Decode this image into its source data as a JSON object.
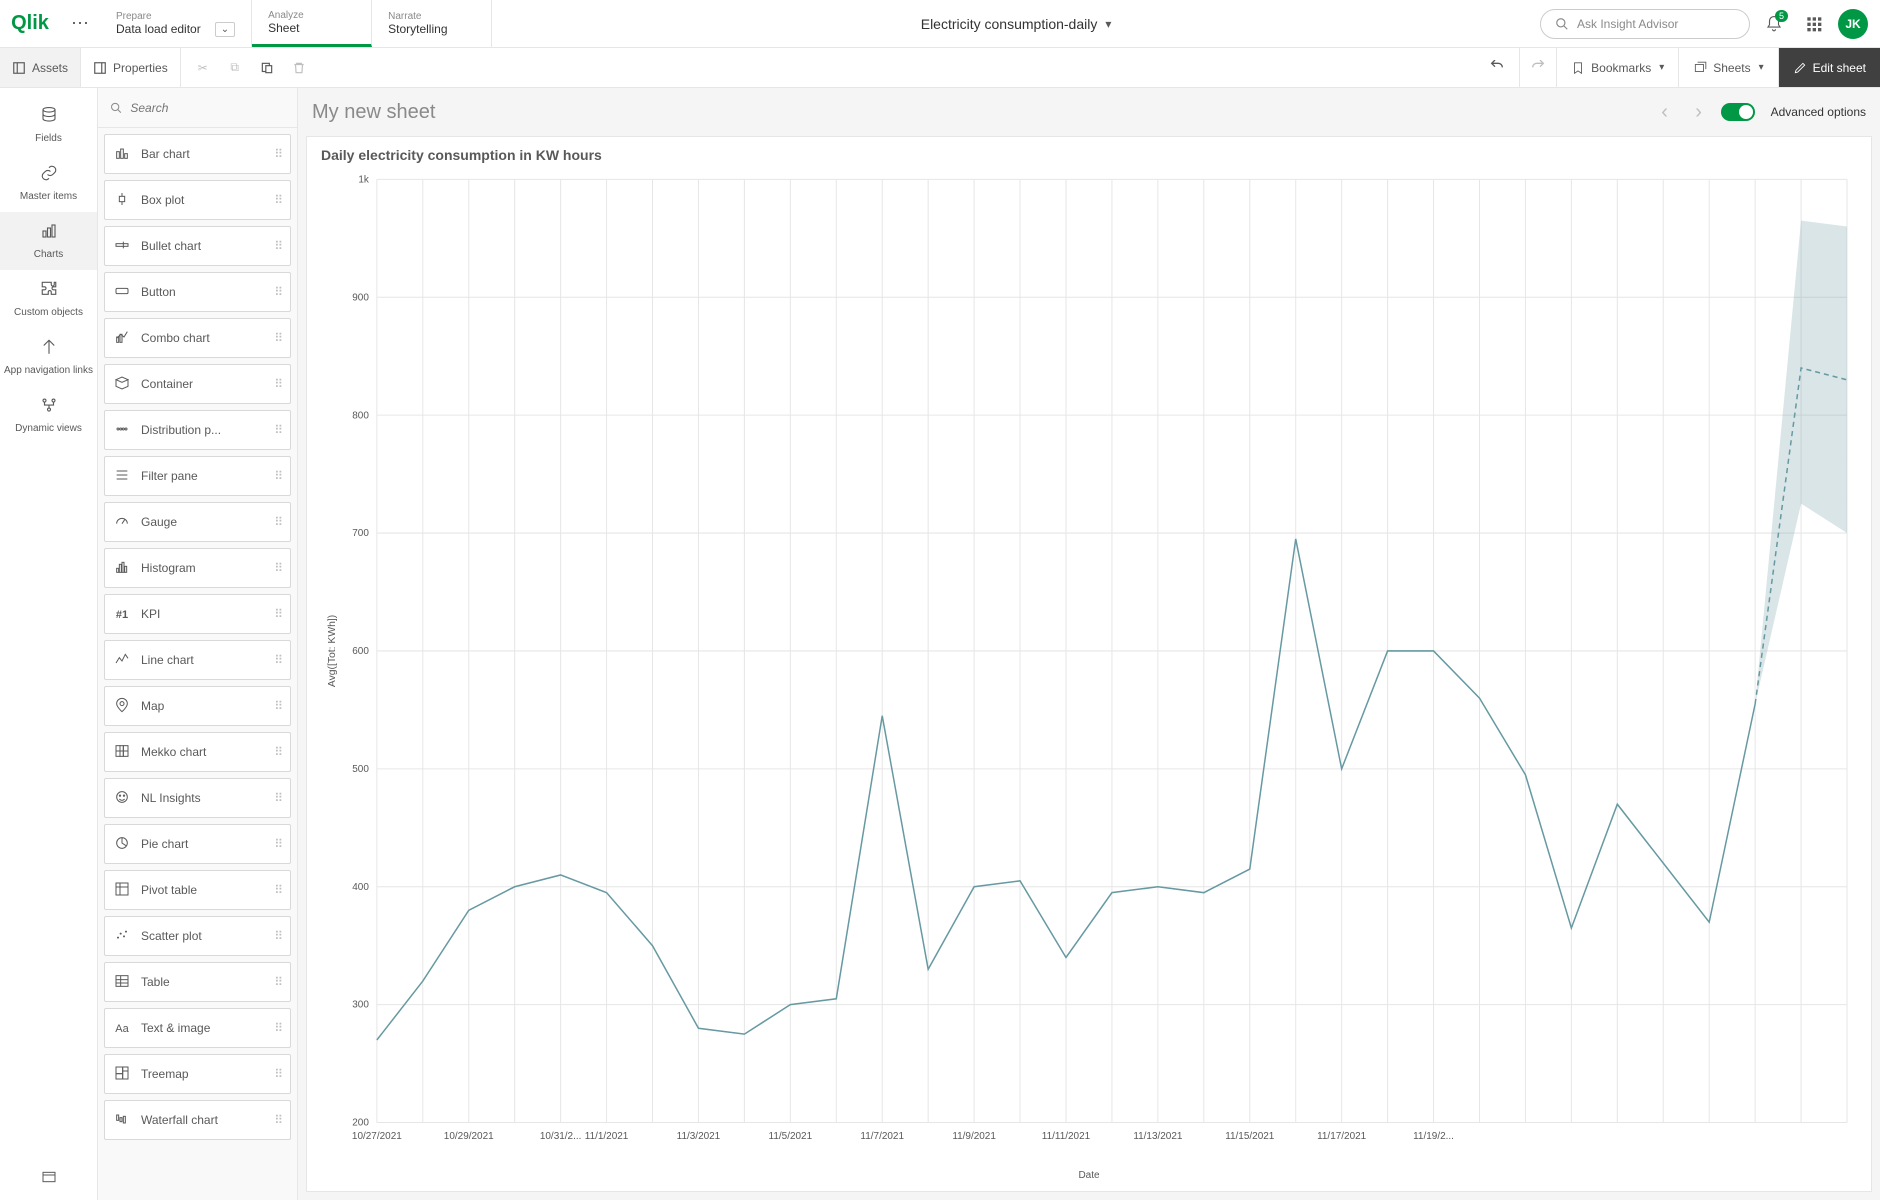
{
  "topbar": {
    "logo": "Qlik",
    "tabs": [
      {
        "top": "Prepare",
        "bottom": "Data load editor",
        "hasDropdown": true,
        "active": false
      },
      {
        "top": "Analyze",
        "bottom": "Sheet",
        "hasDropdown": false,
        "active": true
      },
      {
        "top": "Narrate",
        "bottom": "Storytelling",
        "hasDropdown": false,
        "active": false
      }
    ],
    "app_title": "Electricity consumption-daily",
    "search_placeholder": "Ask Insight Advisor",
    "notification_count": "5",
    "user_initials": "JK"
  },
  "toolbar": {
    "assets": "Assets",
    "properties": "Properties",
    "bookmarks": "Bookmarks",
    "sheets": "Sheets",
    "edit": "Edit sheet"
  },
  "rail": {
    "items": [
      {
        "icon": "db",
        "label": "Fields"
      },
      {
        "icon": "link",
        "label": "Master items"
      },
      {
        "icon": "chart",
        "label": "Charts",
        "active": true
      },
      {
        "icon": "puzzle",
        "label": "Custom objects"
      },
      {
        "icon": "nav",
        "label": "App navigation links"
      },
      {
        "icon": "dyn",
        "label": "Dynamic views"
      }
    ]
  },
  "assets": {
    "search_placeholder": "Search",
    "items": [
      {
        "icon": "bar",
        "label": "Bar chart"
      },
      {
        "icon": "box",
        "label": "Box plot"
      },
      {
        "icon": "bullet",
        "label": "Bullet chart"
      },
      {
        "icon": "button",
        "label": "Button"
      },
      {
        "icon": "combo",
        "label": "Combo chart"
      },
      {
        "icon": "container",
        "label": "Container"
      },
      {
        "icon": "dist",
        "label": "Distribution p..."
      },
      {
        "icon": "filter",
        "label": "Filter pane"
      },
      {
        "icon": "gauge",
        "label": "Gauge"
      },
      {
        "icon": "hist",
        "label": "Histogram"
      },
      {
        "icon": "kpi",
        "label": "KPI"
      },
      {
        "icon": "line",
        "label": "Line chart"
      },
      {
        "icon": "map",
        "label": "Map"
      },
      {
        "icon": "mekko",
        "label": "Mekko chart"
      },
      {
        "icon": "nl",
        "label": "NL Insights"
      },
      {
        "icon": "pie",
        "label": "Pie chart"
      },
      {
        "icon": "pivot",
        "label": "Pivot table"
      },
      {
        "icon": "scatter",
        "label": "Scatter plot"
      },
      {
        "icon": "table",
        "label": "Table"
      },
      {
        "icon": "text",
        "label": "Text & image"
      },
      {
        "icon": "tree",
        "label": "Treemap"
      },
      {
        "icon": "waterfall",
        "label": "Waterfall chart"
      }
    ]
  },
  "sheet": {
    "title": "My new sheet",
    "advanced": "Advanced options"
  },
  "chart": {
    "type": "line",
    "title": "Daily electricity consumption in KW hours",
    "ylabel": "Avg([Tot: KWh])",
    "xlabel": "Date",
    "ylim": [
      200,
      1000
    ],
    "ytick_step": 100,
    "ytick_labels": [
      "200",
      "300",
      "400",
      "500",
      "600",
      "700",
      "800",
      "900",
      "1k"
    ],
    "background_color": "#ffffff",
    "grid_color": "#e6e6e6",
    "line_color": "#6699a1",
    "forecast_fill": "#6699a1",
    "forecast_opacity": 0.25,
    "xticks": [
      "10/27/2021",
      "",
      "10/29/2021",
      "",
      "10/31/2...",
      "11/1/2021",
      "",
      "11/3/2021",
      "",
      "11/5/2021",
      "",
      "11/7/2021",
      "",
      "11/9/2021",
      "",
      "11/11/2021",
      "",
      "11/13/2021",
      "",
      "11/15/2021",
      "",
      "11/17/2021",
      "",
      "11/19/2..."
    ],
    "series": {
      "values": [
        270,
        320,
        380,
        400,
        410,
        395,
        350,
        280,
        275,
        300,
        305,
        545,
        330,
        400,
        405,
        340,
        395,
        400,
        395,
        415,
        695,
        500,
        600,
        600,
        560,
        495,
        365,
        470,
        420,
        370,
        555
      ],
      "forecast_mid": [
        555,
        840,
        830
      ],
      "forecast_upper": [
        555,
        965,
        960
      ],
      "forecast_lower": [
        555,
        725,
        700
      ]
    }
  },
  "colors": {
    "brand": "#009845",
    "text": "#595959",
    "muted": "#8a8a8a",
    "border": "#e6e6e6",
    "dark": "#404040"
  }
}
